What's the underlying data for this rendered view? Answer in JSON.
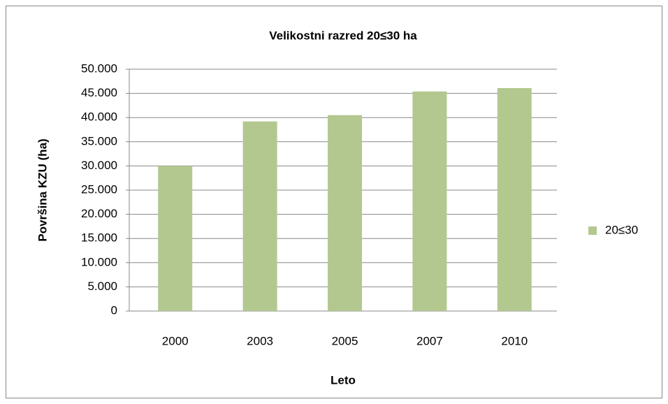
{
  "chart_data": {
    "type": "bar",
    "title": "Velikostni razred 20≤30 ha",
    "x_label": "Leto",
    "y_label": "Površina KZU (ha)",
    "categories": [
      "2000",
      "2003",
      "2005",
      "2007",
      "2010"
    ],
    "series": [
      {
        "name": "20≤30",
        "color": "#b3c88f",
        "values": [
          30000,
          39200,
          40500,
          45400,
          46100
        ]
      }
    ],
    "ylim": [
      0,
      50000
    ],
    "yticks": [
      0,
      {
        "value": 5000,
        "label": "5.000"
      },
      {
        "value": 10000,
        "label": "10.000"
      },
      {
        "value": 15000,
        "label": "15.000"
      },
      {
        "value": 20000,
        "label": "20.000"
      },
      {
        "value": 25000,
        "label": "25.000"
      },
      {
        "value": 30000,
        "label": "30.000"
      },
      {
        "value": 35000,
        "label": "35.000"
      },
      {
        "value": 40000,
        "label": "40.000"
      },
      {
        "value": 45000,
        "label": "45.000"
      },
      {
        "value": 50000,
        "label": "50.000"
      }
    ],
    "grid": true,
    "legend": "right"
  }
}
